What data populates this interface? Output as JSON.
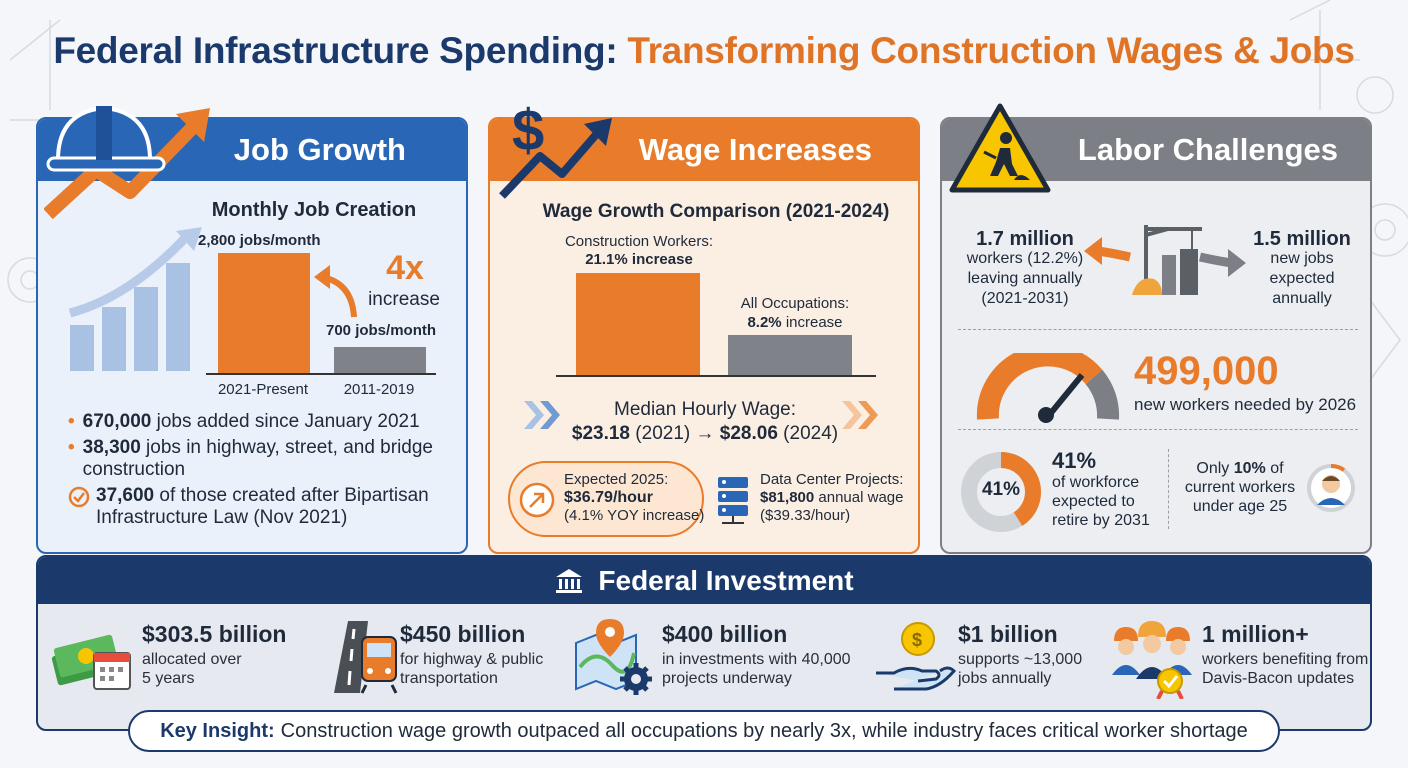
{
  "title": {
    "part1": "Federal Infrastructure Spending:",
    "part2": "Transforming Construction Wages & Jobs"
  },
  "colors": {
    "navy": "#1b3a6b",
    "blue": "#2a66b6",
    "orange": "#e87c2b",
    "gray": "#7c7f86"
  },
  "jobs": {
    "heading": "Job Growth",
    "chart_title": "Monthly Job Creation",
    "bar1_label": "2,800 jobs/month",
    "bar2_label": "700 jobs/month",
    "bar1_category": "2021-Present",
    "bar2_category": "2011-2019",
    "multiplier": "4x",
    "multiplier_label": "increase",
    "items": [
      {
        "num": "670,000",
        "text": " jobs added since January 2021"
      },
      {
        "num": "38,300",
        "text": " jobs in highway, street, and bridge construction"
      },
      {
        "num": "37,600",
        "text": " of those created after Bipartisan Infrastructure Law (Nov 2021)"
      }
    ]
  },
  "wages": {
    "heading": "Wage Increases",
    "chart_title": "Wage Growth Comparison (2021-2024)",
    "bar1_label": "Construction Workers:",
    "bar1_value": "21.1% increase",
    "bar2_label": "All Occupations:",
    "bar2_value_bold": "8.2%",
    "bar2_value_rest": " increase",
    "median_label": "Median Hourly Wage:",
    "median_2021": "$23.18",
    "median_2021_year": " (2021) → ",
    "median_2024": "$28.06",
    "median_2024_year": " (2024)",
    "expected_label": "Expected 2025:",
    "expected_value": "$36.79/hour",
    "expected_note": "(4.1% YOY increase)",
    "datacenter_label": "Data Center Projects:",
    "datacenter_value": "$81,800",
    "datacenter_value_rest": " annual wage",
    "datacenter_note": "($39.33/hour)"
  },
  "labor": {
    "heading": "Labor Challenges",
    "leaving_value": "1.7 million",
    "leaving_l1": "workers (12.2%)",
    "leaving_l2": "leaving annually",
    "leaving_l3": "(2021-2031)",
    "newjobs_value": "1.5 million",
    "newjobs_l1": "new jobs",
    "newjobs_l2": "expected",
    "newjobs_l3": "annually",
    "needed_value": "499,000",
    "needed_label": "new workers needed by 2026",
    "retire_donut": "41%",
    "retire_value": "41%",
    "retire_l1": "of workforce",
    "retire_l2": "expected to",
    "retire_l3": "retire by 2031",
    "young_l1a": "Only ",
    "young_l1b": "10%",
    "young_l1c": " of",
    "young_l2": "current workers",
    "young_l3": "under age 25"
  },
  "federal": {
    "heading": "Federal Investment",
    "items": [
      {
        "amount": "$303.5 billion",
        "l1": "allocated over",
        "l2": "5 years",
        "icon": "money-calendar-icon"
      },
      {
        "amount": "$450 billion",
        "l1": "for highway & public",
        "l2": "transportation",
        "icon": "road-train-icon"
      },
      {
        "amount": "$400 billion",
        "l1": "in investments with 40,000",
        "l2": "projects underway",
        "icon": "map-gear-icon"
      },
      {
        "amount": "$1 billion",
        "l1": "supports ~13,000",
        "l2": "jobs annually",
        "icon": "hand-coin-icon"
      },
      {
        "amount": "1 million+",
        "l1": "workers benefiting from",
        "l2": "Davis-Bacon updates",
        "icon": "workers-badge-icon"
      }
    ]
  },
  "insight": {
    "key": "Key Insight:",
    "text": "Construction wage growth outpaced all occupations by nearly 3x, while industry faces critical worker shortage"
  }
}
